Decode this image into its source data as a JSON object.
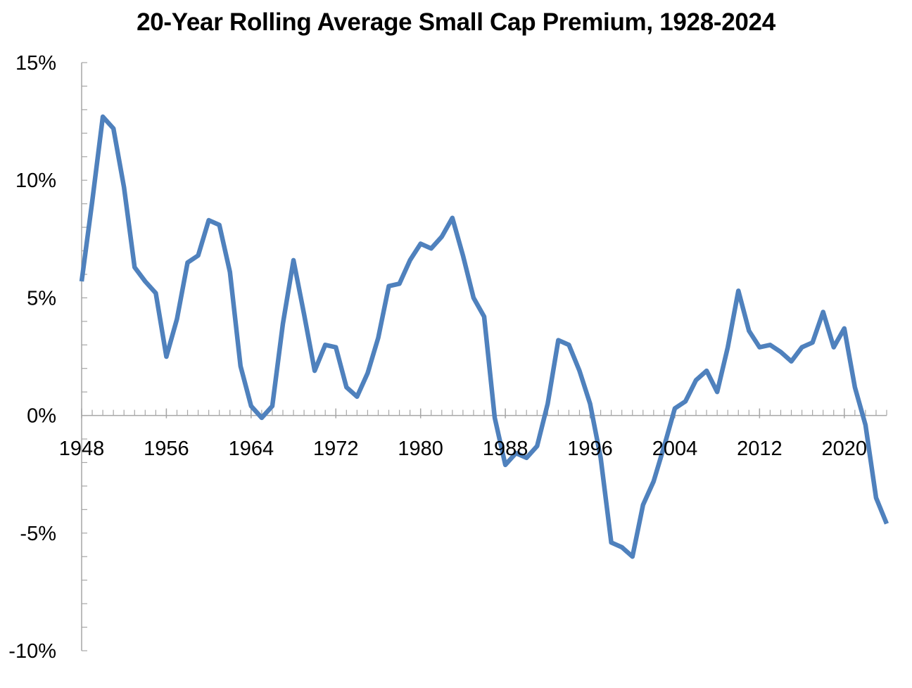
{
  "colors": {
    "line": "#4F81BD",
    "axis": "#A6A6A6",
    "text": "#000000"
  },
  "chart_data": {
    "type": "line",
    "title": "20-Year Rolling Average Small Cap Premium, 1928-2024",
    "xlabel": "",
    "ylabel": "",
    "ylim": [
      -0.1,
      0.15
    ],
    "xlim": [
      1948,
      2024
    ],
    "grid": false,
    "legend": "none",
    "y_ticks": [
      {
        "value": 0.15,
        "label": "15%"
      },
      {
        "value": 0.1,
        "label": "10%"
      },
      {
        "value": 0.05,
        "label": "5%"
      },
      {
        "value": 0.0,
        "label": "0%"
      },
      {
        "value": -0.05,
        "label": "-5%"
      },
      {
        "value": -0.1,
        "label": "-10%"
      }
    ],
    "x_ticks": [
      {
        "value": 1948,
        "label": "1948"
      },
      {
        "value": 1956,
        "label": "1956"
      },
      {
        "value": 1964,
        "label": "1964"
      },
      {
        "value": 1972,
        "label": "1972"
      },
      {
        "value": 1980,
        "label": "1980"
      },
      {
        "value": 1988,
        "label": "1988"
      },
      {
        "value": 1996,
        "label": "1996"
      },
      {
        "value": 2004,
        "label": "2004"
      },
      {
        "value": 2012,
        "label": "2012"
      },
      {
        "value": 2020,
        "label": "2020"
      }
    ],
    "series": [
      {
        "name": "20-Year Rolling Average Small Cap Premium",
        "x": [
          1948,
          1949,
          1950,
          1951,
          1952,
          1953,
          1954,
          1955,
          1956,
          1957,
          1958,
          1959,
          1960,
          1961,
          1962,
          1963,
          1964,
          1965,
          1966,
          1967,
          1968,
          1969,
          1970,
          1971,
          1972,
          1973,
          1974,
          1975,
          1976,
          1977,
          1978,
          1979,
          1980,
          1981,
          1982,
          1983,
          1984,
          1985,
          1986,
          1987,
          1988,
          1989,
          1990,
          1991,
          1992,
          1993,
          1994,
          1995,
          1996,
          1997,
          1998,
          1999,
          2000,
          2001,
          2002,
          2003,
          2004,
          2005,
          2006,
          2007,
          2008,
          2009,
          2010,
          2011,
          2012,
          2013,
          2014,
          2015,
          2016,
          2017,
          2018,
          2019,
          2020,
          2021,
          2022,
          2023,
          2024
        ],
        "values": [
          0.057,
          0.091,
          0.127,
          0.122,
          0.097,
          0.063,
          0.057,
          0.052,
          0.025,
          0.041,
          0.065,
          0.068,
          0.083,
          0.081,
          0.061,
          0.021,
          0.004,
          -0.001,
          0.004,
          0.039,
          0.066,
          0.043,
          0.019,
          0.03,
          0.029,
          0.012,
          0.008,
          0.018,
          0.033,
          0.055,
          0.056,
          0.066,
          0.073,
          0.071,
          0.076,
          0.084,
          0.068,
          0.05,
          0.042,
          -0.001,
          -0.021,
          -0.016,
          -0.018,
          -0.013,
          0.005,
          0.032,
          0.03,
          0.019,
          0.005,
          -0.018,
          -0.054,
          -0.056,
          -0.06,
          -0.038,
          -0.028,
          -0.013,
          0.003,
          0.006,
          0.015,
          0.019,
          0.01,
          0.029,
          0.053,
          0.036,
          0.029,
          0.03,
          0.027,
          0.023,
          0.029,
          0.031,
          0.044,
          0.029,
          0.037,
          0.012,
          -0.004,
          -0.035,
          -0.046
        ]
      }
    ]
  }
}
